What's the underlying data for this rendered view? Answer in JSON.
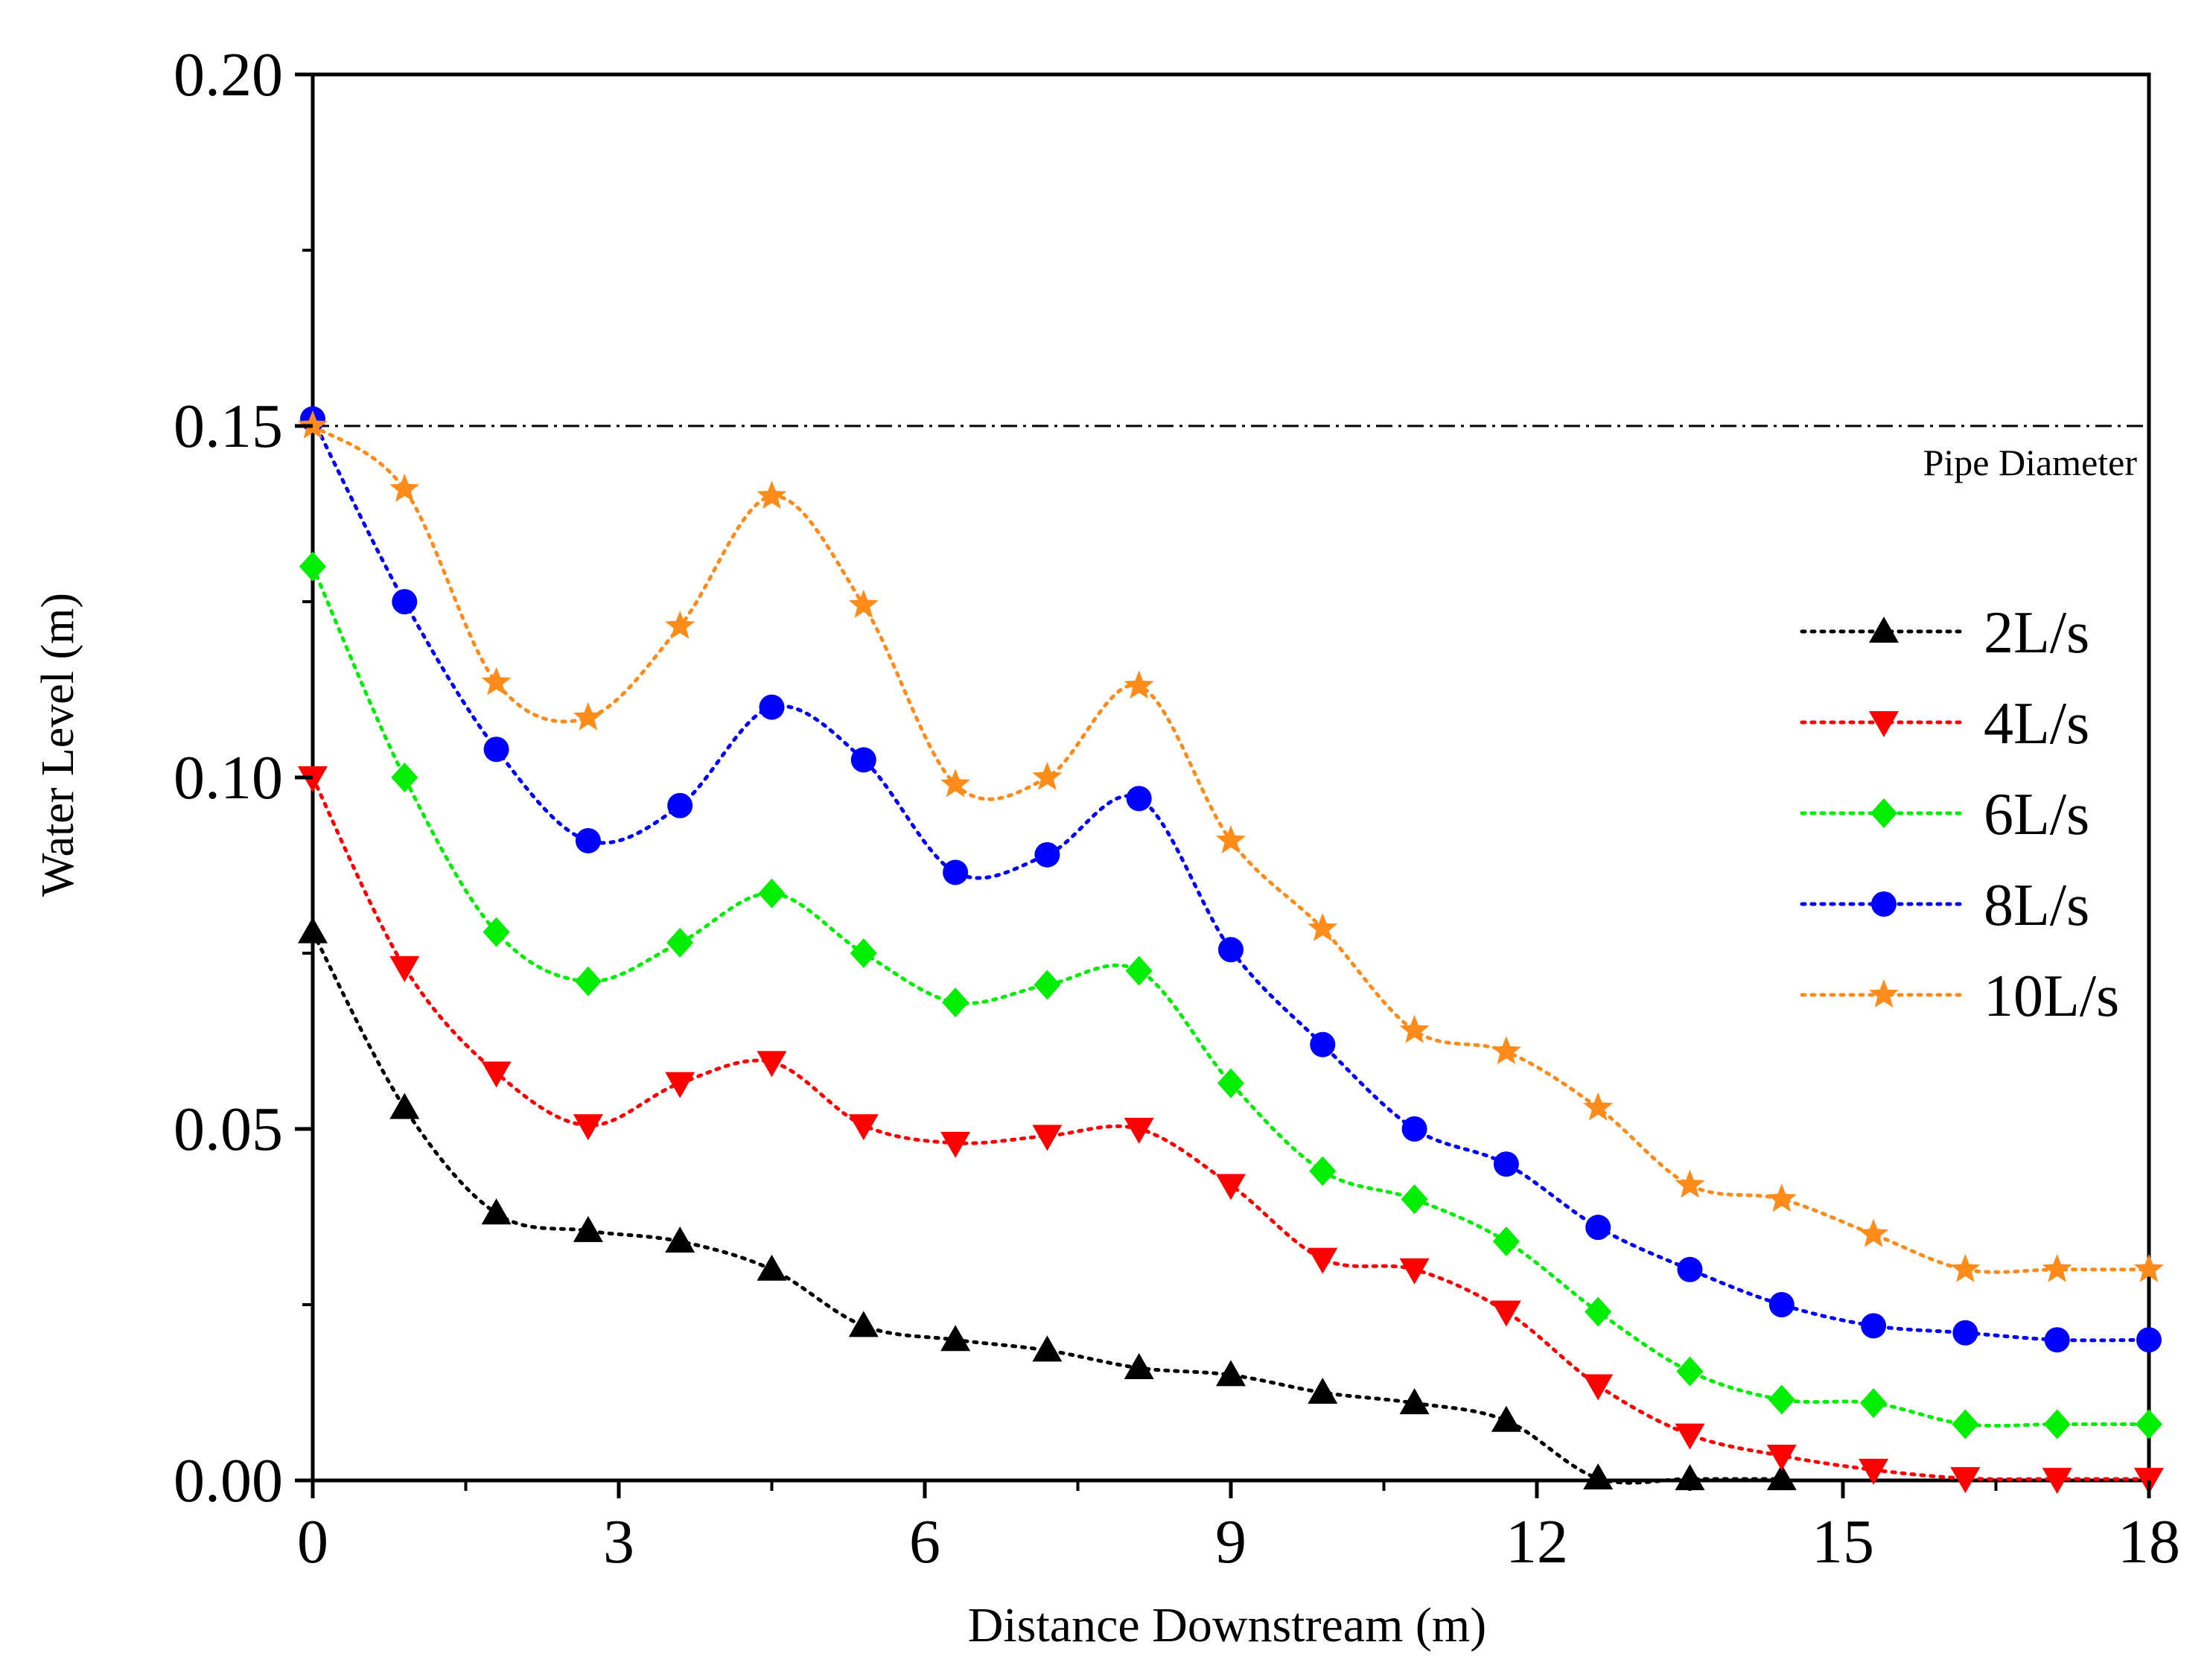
{
  "chart_data": {
    "type": "line",
    "title": "",
    "xlabel": "Distance Downstream (m)",
    "ylabel": "Water Level (m)",
    "xlim": [
      0,
      18
    ],
    "ylim": [
      0,
      0.2
    ],
    "x_ticks": [
      0,
      3,
      6,
      9,
      12,
      15,
      18
    ],
    "x_tick_labels": [
      "0",
      "3",
      "6",
      "9",
      "12",
      "15",
      "18"
    ],
    "y_ticks": [
      0,
      0.05,
      0.1,
      0.15,
      0.2
    ],
    "y_tick_labels": [
      "0.00",
      "0.05",
      "0.10",
      "0.15",
      "0.20"
    ],
    "grid": false,
    "legend_position": "right",
    "x": [
      0,
      0.9,
      1.8,
      2.7,
      3.6,
      4.5,
      5.4,
      6.3,
      7.2,
      8.1,
      9.0,
      9.9,
      10.8,
      11.7,
      12.6,
      13.5,
      14.4,
      15.3,
      16.2,
      17.1,
      18.0
    ],
    "series": [
      {
        "name": "2L/s",
        "color": "#000000",
        "marker": "triangle-up",
        "values": [
          0.078,
          0.053,
          0.038,
          0.0355,
          0.034,
          0.03,
          0.022,
          0.02,
          0.0185,
          0.016,
          0.015,
          0.0125,
          0.011,
          0.0085,
          0.0003,
          0.0002,
          0.0002,
          null,
          null,
          null,
          null
        ]
      },
      {
        "name": "4L/s",
        "color": "#ff0000",
        "marker": "triangle-down",
        "values": [
          0.1,
          0.073,
          0.058,
          0.0505,
          0.0565,
          0.0595,
          0.0505,
          0.048,
          0.049,
          0.05,
          0.042,
          0.0315,
          0.03,
          0.024,
          0.0135,
          0.0065,
          0.0035,
          0.0015,
          0.0003,
          0.0002,
          0.0002
        ]
      },
      {
        "name": "6L/s",
        "color": "#00ee00",
        "marker": "diamond",
        "values": [
          0.13,
          0.1,
          0.078,
          0.071,
          0.0765,
          0.0835,
          0.075,
          0.068,
          0.0705,
          0.0725,
          0.0565,
          0.044,
          0.04,
          0.034,
          0.024,
          0.0155,
          0.0115,
          0.011,
          0.008,
          0.008,
          0.008
        ]
      },
      {
        "name": "8L/s",
        "color": "#0000ff",
        "marker": "circle",
        "values": [
          0.151,
          0.125,
          0.104,
          0.091,
          0.096,
          0.11,
          0.1025,
          0.0865,
          0.089,
          0.097,
          0.0755,
          0.062,
          0.05,
          0.045,
          0.036,
          0.03,
          0.025,
          0.022,
          0.021,
          0.02,
          0.02
        ]
      },
      {
        "name": "10L/s",
        "color": "#ff8c1a",
        "marker": "star",
        "values": [
          0.15,
          0.141,
          0.1135,
          0.1085,
          0.1215,
          0.14,
          0.1245,
          0.099,
          0.1,
          0.113,
          0.091,
          0.0785,
          0.064,
          0.061,
          0.053,
          0.042,
          0.04,
          0.035,
          0.03,
          0.03,
          0.03
        ]
      }
    ],
    "reference_line": {
      "label": "Pipe Diameter",
      "y": 0.15,
      "style": "dash-dot"
    }
  }
}
